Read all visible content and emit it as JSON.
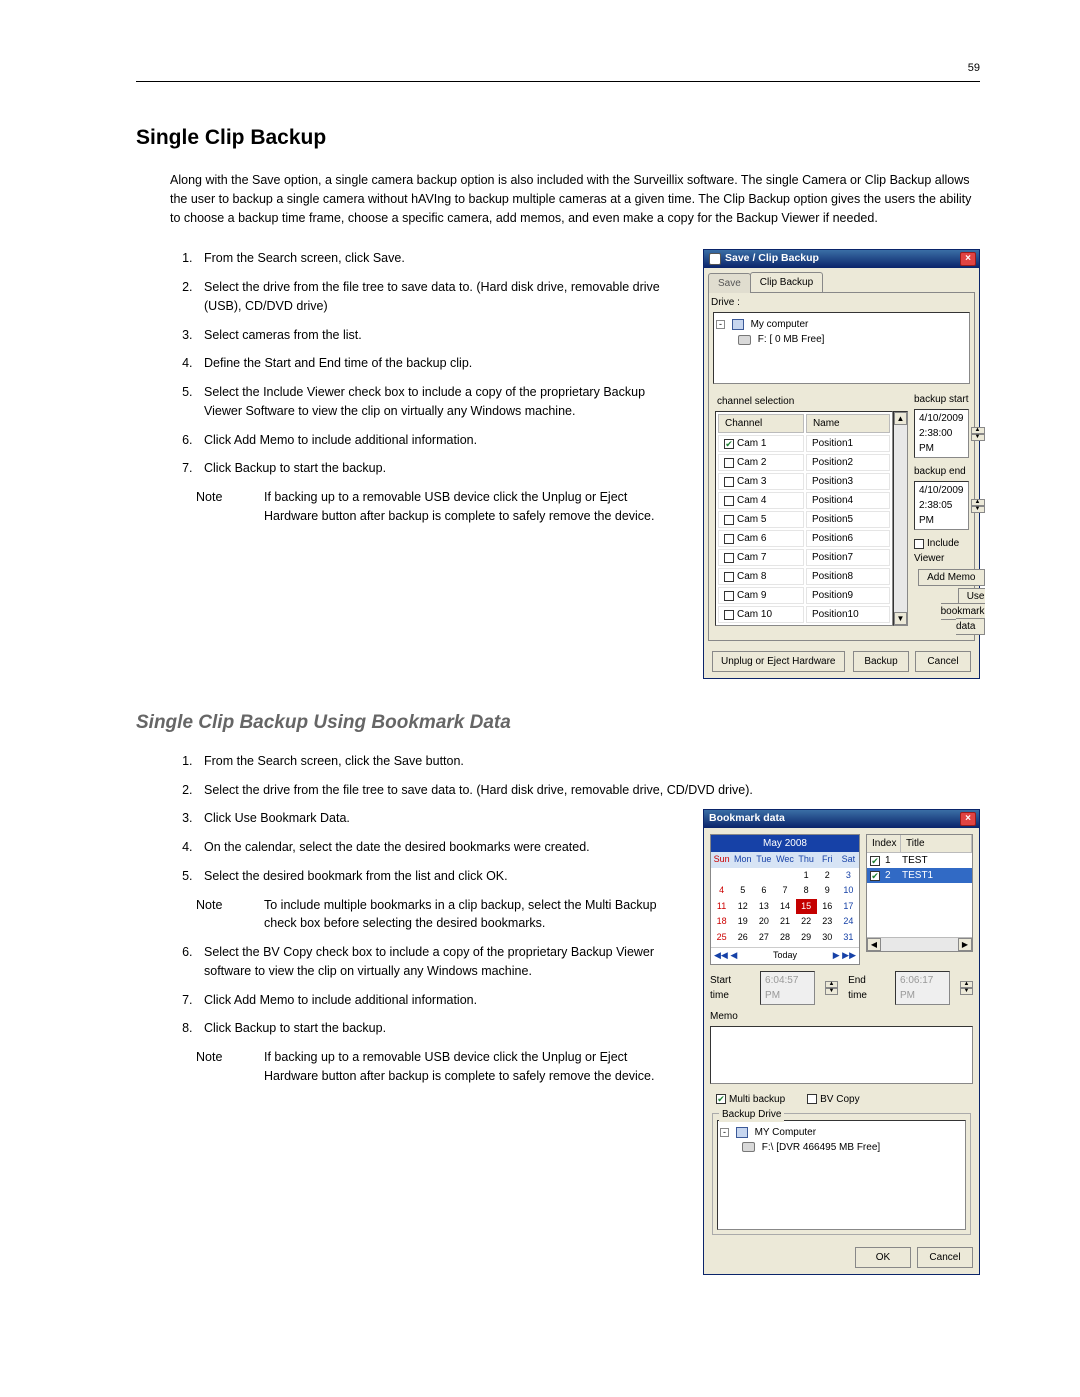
{
  "page_number": "59",
  "section1": {
    "title": "Single Clip Backup",
    "intro": "Along with the Save option, a single camera backup option is also included with the Surveillix software. The single Camera or Clip Backup allows the user to backup a single camera without hAVIng to backup multiple cameras at a given time. The Clip Backup option gives the users the ability to choose a backup time frame, choose a specific camera, add memos, and even make a copy for the Backup Viewer if needed.",
    "step1_a": "From the ",
    "step1_b": "Search",
    "step1_c": " screen, click ",
    "step1_d": "Save",
    "step1_e": ".",
    "step2": "Select the drive from the file tree to save data to.  (Hard disk drive, removable drive (USB), CD/DVD drive)",
    "step3": "Select cameras from the list.",
    "step4_a": "Define the ",
    "step4_b": "Start",
    "step4_c": " and ",
    "step4_d": "End",
    "step4_e": " time of the backup clip.",
    "step5_a": "Select the ",
    "step5_b": "Include Viewer",
    "step5_c": " check box to include a copy of the proprietary Backup Viewer Software to view the clip on virtually any Windows machine.",
    "step6_a": "Click ",
    "step6_b": "Add Memo",
    "step6_c": " to include additional information.",
    "step7_a": "Click ",
    "step7_b": "Backup",
    "step7_c": " to start the backup.",
    "note_label": "Note",
    "note_body": "If backing up to a removable USB device click the Unplug or Eject Hardware button after backup is complete to safely remove the device."
  },
  "dialog1": {
    "title": "Save / Clip Backup",
    "tab_save": "Save",
    "tab_clip": "Clip Backup",
    "drive_label": "Drive :",
    "root": "My computer",
    "drive_item": "F: [ 0 MB Free]",
    "channel_sel": "channel selection",
    "col_channel": "Channel",
    "col_name": "Name",
    "cams": [
      {
        "ch": "Cam 1",
        "name": "Position1",
        "chk": true
      },
      {
        "ch": "Cam 2",
        "name": "Position2",
        "chk": false
      },
      {
        "ch": "Cam 3",
        "name": "Position3",
        "chk": false
      },
      {
        "ch": "Cam 4",
        "name": "Position4",
        "chk": false
      },
      {
        "ch": "Cam 5",
        "name": "Position5",
        "chk": false
      },
      {
        "ch": "Cam 6",
        "name": "Position6",
        "chk": false
      },
      {
        "ch": "Cam 7",
        "name": "Position7",
        "chk": false
      },
      {
        "ch": "Cam 8",
        "name": "Position8",
        "chk": false
      },
      {
        "ch": "Cam 9",
        "name": "Position9",
        "chk": false
      },
      {
        "ch": "Cam 10",
        "name": "Position10",
        "chk": false
      }
    ],
    "backup_start": "backup start",
    "start_val": "4/10/2009  2:38:00 PM",
    "backup_end": "backup end",
    "end_val": "4/10/2009  2:38:05 PM",
    "include_viewer": "Include Viewer",
    "add_memo": "Add Memo",
    "use_bookmark": "Use bookmark data",
    "unplug": "Unplug or Eject Hardware",
    "backup_btn": "Backup",
    "cancel_btn": "Cancel"
  },
  "section2": {
    "title": "Single Clip Backup Using Bookmark Data",
    "s1_a": "From the ",
    "s1_b": "Search",
    "s1_c": " screen, click the ",
    "s1_d": "Save",
    "s1_e": " button.",
    "s2": "Select the drive from the file tree to save data to.  (Hard disk drive, removable drive, CD/DVD drive).",
    "s3_a": "Click ",
    "s3_b": "Use Bookmark Data",
    "s3_c": ".",
    "s4": "On the calendar, select the date the desired bookmarks were created.",
    "s5_a": "Select the desired bookmark from the list and click ",
    "s5_b": "OK",
    "s5_c": ".",
    "note1_label": "Note",
    "note1": "To include multiple bookmarks in a clip backup, select the Multi Backup check box before selecting the desired bookmarks.",
    "s6_a": "Select the ",
    "s6_b": "BV Copy",
    "s6_c": " check box to include a copy of the proprietary Backup Viewer software to view the clip on virtually any Windows machine.",
    "s7_a": "Click ",
    "s7_b": "Add Memo",
    "s7_c": " to include additional information.",
    "s8_a": "Click ",
    "s8_b": "Backup",
    "s8_c": " to start the backup.",
    "note2_label": "Note",
    "note2": "If backing up to a removable USB device click the Unplug or Eject Hardware button after backup is complete to safely remove the device."
  },
  "dialog2": {
    "title": "Bookmark data",
    "month": "May 2008",
    "dows": [
      "Sun",
      "Mon",
      "Tue",
      "Wec",
      "Thu",
      "Fri",
      "Sat"
    ],
    "days": [
      "",
      "",
      "",
      "",
      "1",
      "2",
      "3",
      "4",
      "5",
      "6",
      "7",
      "8",
      "9",
      "10",
      "11",
      "12",
      "13",
      "14",
      "15",
      "16",
      "17",
      "18",
      "19",
      "20",
      "21",
      "22",
      "23",
      "24",
      "25",
      "26",
      "27",
      "28",
      "29",
      "30",
      "31",
      "",
      "",
      "",
      "",
      "",
      "",
      ""
    ],
    "sel_day": "15",
    "today": "Today",
    "idx_h": "Index",
    "title_h": "Title",
    "rows": [
      {
        "i": "1",
        "t": "TEST"
      },
      {
        "i": "2",
        "t": "TEST1"
      }
    ],
    "start_label": "Start time",
    "start_val": "6:04:57 PM",
    "end_label": "End time",
    "end_val": "6:06:17 PM",
    "memo_label": "Memo",
    "multi": "Multi backup",
    "bvcopy": "BV Copy",
    "drive_legend": "Backup Drive",
    "root": "MY Computer",
    "drive": "F:\\ [DVR 466495 MB Free]",
    "ok": "OK",
    "cancel": "Cancel"
  }
}
